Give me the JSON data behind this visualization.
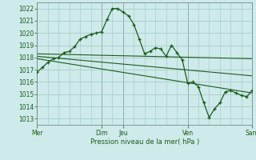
{
  "bg_color": "#ceeaea",
  "grid_color": "#aacccc",
  "line_color": "#1a5c1a",
  "xlabel": "Pression niveau de la mer( hPa )",
  "ylim": [
    1012.5,
    1022.5
  ],
  "yticks": [
    1013,
    1014,
    1015,
    1016,
    1017,
    1018,
    1019,
    1020,
    1021,
    1022
  ],
  "vline_color": "#446666",
  "main_x": [
    0,
    6,
    12,
    18,
    24,
    30,
    36,
    42,
    48,
    54,
    60,
    66,
    72,
    78,
    84,
    90,
    96,
    102,
    108,
    114,
    120,
    126,
    132,
    138,
    144,
    150,
    156,
    162,
    168,
    174,
    180,
    186,
    192,
    198,
    204,
    210,
    216,
    222,
    228,
    234,
    240
  ],
  "main_y": [
    1016.8,
    1017.2,
    1017.6,
    1017.9,
    1018.0,
    1018.4,
    1018.5,
    1018.9,
    1019.5,
    1019.7,
    1019.9,
    1020.0,
    1020.1,
    1021.1,
    1022.0,
    1022.0,
    1021.7,
    1021.4,
    1020.7,
    1019.5,
    1018.3,
    1018.5,
    1018.8,
    1018.7,
    1018.1,
    1019.0,
    1018.4,
    1017.8,
    1015.9,
    1016.0,
    1015.6,
    1014.3,
    1013.1,
    1013.8,
    1014.3,
    1015.2,
    1015.3,
    1015.1,
    1014.9,
    1014.8,
    1015.3
  ],
  "line2_x": [
    0,
    240
  ],
  "line2_y": [
    1018.3,
    1017.9
  ],
  "line3_x": [
    0,
    240
  ],
  "line3_y": [
    1018.1,
    1016.5
  ],
  "line4_x": [
    0,
    240
  ],
  "line4_y": [
    1017.9,
    1015.1
  ],
  "vlines_x": [
    0,
    72,
    96,
    168,
    240
  ],
  "xtick_pos": [
    0,
    72,
    96,
    168,
    240
  ],
  "xtick_labels": [
    "Mer",
    "Dim",
    "Jeu",
    "Ven",
    "Sam"
  ],
  "minor_x_step": 12,
  "xlim": [
    0,
    240
  ]
}
